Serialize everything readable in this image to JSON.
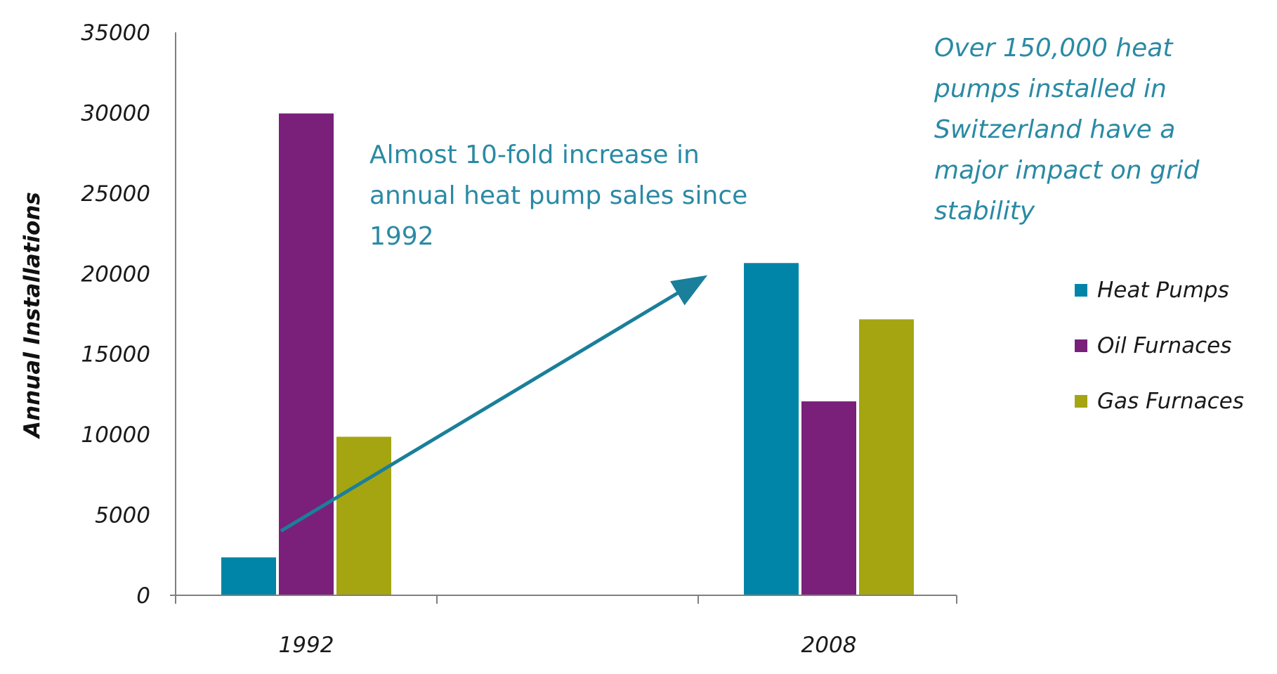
{
  "chart_data": {
    "type": "bar",
    "title": "",
    "xlabel": "",
    "ylabel": "Annual Installations",
    "categories": [
      "1992",
      "2008"
    ],
    "series": [
      {
        "name": "Heat Pumps",
        "color": "#0085a8",
        "values": [
          2400,
          20700
        ]
      },
      {
        "name": "Oil Furnaces",
        "color": "#7a1f7a",
        "values": [
          30000,
          12100
        ]
      },
      {
        "name": "Gas Furnaces",
        "color": "#a5a512",
        "values": [
          9900,
          17200
        ]
      }
    ],
    "ylim": [
      0,
      35000
    ],
    "yticks": [
      "0",
      "5000",
      "10000",
      "15000",
      "20000",
      "25000",
      "30000",
      "35000"
    ],
    "legend_position": "right",
    "annotations": {
      "increase_text": [
        "Almost 10-fold increase in",
        "annual heat pump sales since",
        "1992"
      ],
      "impact_text": [
        "Over 150,000 heat",
        "pumps installed in",
        "Switzerland have a",
        "major impact on grid",
        "stability"
      ],
      "arrow": {
        "from": {
          "category": "1992",
          "value": 4000
        },
        "to": {
          "category": "2008",
          "value": 19800
        },
        "color": "#1a7f9a"
      }
    }
  }
}
